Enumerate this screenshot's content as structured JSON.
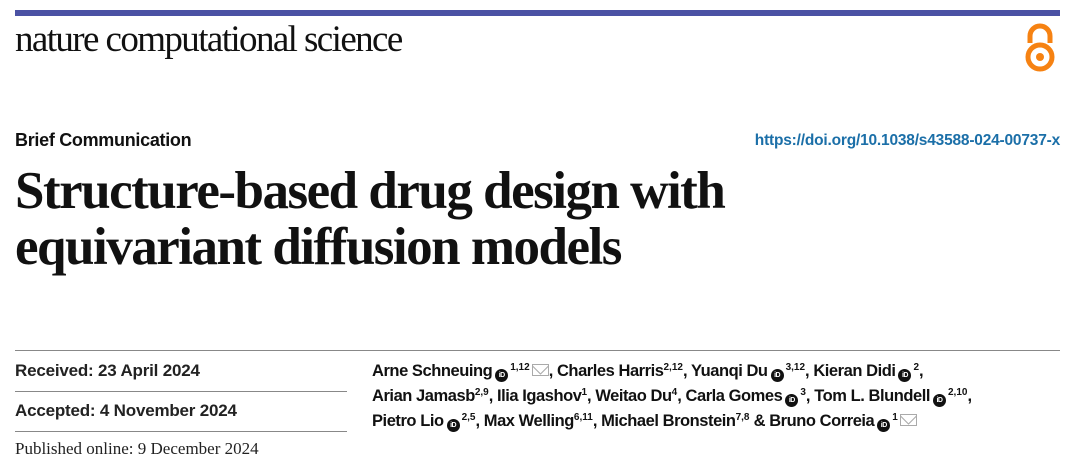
{
  "header": {
    "journal": "nature computational science",
    "brand_color": "#4b52a4",
    "open_access_icon": "open-access-lock-icon",
    "open_access_color": "#f68212"
  },
  "article": {
    "type": "Brief Communication",
    "doi": "https://doi.org/10.1038/s43588-024-00737-x",
    "title": "Structure-based drug design with equivariant diffusion models",
    "received": "Received: 23 April 2024",
    "accepted": "Accepted: 4 November 2024",
    "published": "Published online: 9 December 2024"
  },
  "authors": [
    {
      "name": "Arne Schneuing",
      "orcid": true,
      "sup": "1,12",
      "email": true,
      "sep": ", "
    },
    {
      "name": "Charles Harris",
      "orcid": false,
      "sup": "2,12",
      "email": false,
      "sep": ", "
    },
    {
      "name": "Yuanqi Du",
      "orcid": true,
      "sup": "3,12",
      "email": false,
      "sep": ", "
    },
    {
      "name": "Kieran Didi",
      "orcid": true,
      "sup": "2",
      "email": false,
      "sep": ","
    },
    {
      "name": "Arian Jamasb",
      "orcid": false,
      "sup": "2,9",
      "email": false,
      "sep": ", "
    },
    {
      "name": "Ilia Igashov",
      "orcid": false,
      "sup": "1",
      "email": false,
      "sep": ", "
    },
    {
      "name": "Weitao Du",
      "orcid": false,
      "sup": "4",
      "email": false,
      "sep": ", "
    },
    {
      "name": "Carla Gomes",
      "orcid": true,
      "sup": "3",
      "email": false,
      "sep": ", "
    },
    {
      "name": "Tom L. Blundell",
      "orcid": true,
      "sup": "2,10",
      "email": false,
      "sep": ","
    },
    {
      "name": "Pietro Lio",
      "orcid": true,
      "sup": "2,5",
      "email": false,
      "sep": ", "
    },
    {
      "name": "Max Welling",
      "orcid": false,
      "sup": "6,11",
      "email": false,
      "sep": ", "
    },
    {
      "name": "Michael Bronstein",
      "orcid": false,
      "sup": "7,8",
      "email": false,
      "sep": " & "
    },
    {
      "name": "Bruno Correia",
      "orcid": true,
      "sup": "1",
      "email": true,
      "sep": ""
    }
  ],
  "orcid_glyph": "iD"
}
